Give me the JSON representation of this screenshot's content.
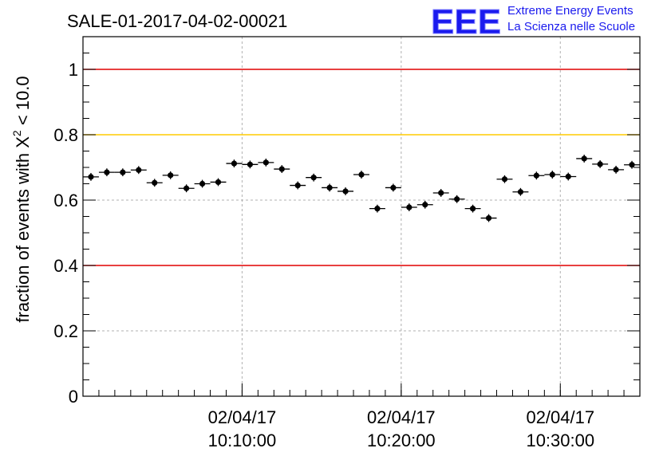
{
  "chart_data": {
    "type": "scatter",
    "title": "SALE-01-2017-04-02-00021",
    "xlabel": "",
    "ylabel": "fraction of events with χ² < 10.0",
    "ylabel_parts": {
      "before": "fraction of events with X",
      "sup": "2",
      "after": " < 10.0"
    },
    "ylim": [
      0,
      1.1
    ],
    "xlim": [
      "10:00:00",
      "10:35:00"
    ],
    "y_ticks": [
      "0",
      "0.2",
      "0.4",
      "0.6",
      "0.8",
      "1"
    ],
    "x_ticks": [
      {
        "x": "10:10:00",
        "date": "02/04/17",
        "time": "10:10:00"
      },
      {
        "x": "10:20:00",
        "date": "02/04/17",
        "time": "10:20:00"
      },
      {
        "x": "10:30:00",
        "date": "02/04/17",
        "time": "10:30:00"
      }
    ],
    "grid": true,
    "reference_lines": [
      {
        "y": 1.0,
        "color": "#e00000"
      },
      {
        "y": 0.8,
        "color": "#ffcc00"
      },
      {
        "y": 0.4,
        "color": "#e00000"
      }
    ],
    "series": [
      {
        "marker_color": "#000000",
        "x": [
          "10:00:30",
          "10:01:30",
          "10:02:30",
          "10:03:30",
          "10:04:30",
          "10:05:30",
          "10:06:30",
          "10:07:30",
          "10:08:30",
          "10:09:30",
          "10:10:30",
          "10:11:30",
          "10:12:30",
          "10:13:30",
          "10:14:30",
          "10:15:30",
          "10:16:30",
          "10:17:30",
          "10:18:30",
          "10:19:30",
          "10:20:30",
          "10:21:30",
          "10:22:30",
          "10:23:30",
          "10:24:30",
          "10:25:30",
          "10:26:30",
          "10:27:30",
          "10:28:30",
          "10:29:30",
          "10:30:30",
          "10:31:30",
          "10:32:30",
          "10:33:30",
          "10:34:30"
        ],
        "y": [
          0.671,
          0.685,
          0.685,
          0.692,
          0.653,
          0.676,
          0.636,
          0.65,
          0.655,
          0.712,
          0.709,
          0.715,
          0.695,
          0.645,
          0.669,
          0.638,
          0.627,
          0.678,
          0.574,
          0.638,
          0.578,
          0.586,
          0.622,
          0.603,
          0.574,
          0.545,
          0.664,
          0.625,
          0.675,
          0.678,
          0.672,
          0.727,
          0.71,
          0.693,
          0.708
        ],
        "yerr": [
          0.012,
          0.012,
          0.012,
          0.012,
          0.012,
          0.012,
          0.012,
          0.012,
          0.012,
          0.012,
          0.012,
          0.012,
          0.012,
          0.012,
          0.012,
          0.012,
          0.012,
          0.012,
          0.012,
          0.012,
          0.012,
          0.012,
          0.012,
          0.012,
          0.012,
          0.012,
          0.012,
          0.012,
          0.012,
          0.012,
          0.012,
          0.012,
          0.012,
          0.012,
          0.012
        ]
      }
    ]
  },
  "logo": {
    "letters": "EEE",
    "line1": "Extreme Energy Events",
    "line2": "La Scienza nelle Scuole",
    "color": "#1a1aee"
  }
}
